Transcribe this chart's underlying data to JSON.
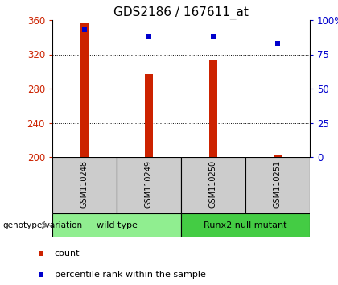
{
  "title": "GDS2186 / 167611_at",
  "samples": [
    "GSM110248",
    "GSM110249",
    "GSM110250",
    "GSM110251"
  ],
  "counts": [
    357,
    297,
    313,
    202
  ],
  "percentiles": [
    93,
    88,
    88,
    83
  ],
  "ymin": 200,
  "ymax": 360,
  "yticks_left": [
    200,
    240,
    280,
    320,
    360
  ],
  "yticks_right": [
    0,
    25,
    50,
    75,
    100
  ],
  "bar_color": "#cc2200",
  "dot_color": "#0000cc",
  "group1_label": "wild type",
  "group2_label": "Runx2 null mutant",
  "group1_color": "#90ee90",
  "group2_color": "#44cc44",
  "label_color_left": "#cc2200",
  "label_color_right": "#0000cc",
  "legend_count_label": "count",
  "legend_pct_label": "percentile rank within the sample",
  "xlabel_label": "genotype/variation",
  "sample_box_color": "#cccccc",
  "title_fontsize": 11,
  "tick_fontsize": 8.5
}
